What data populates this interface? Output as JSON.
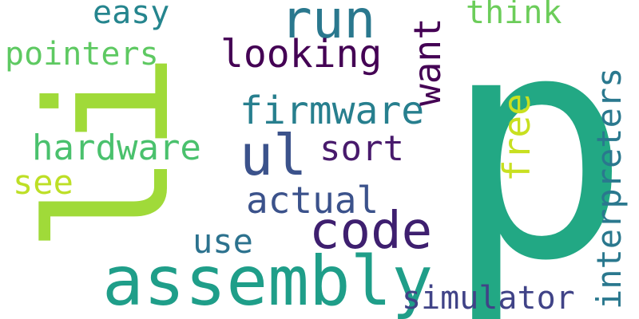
{
  "words": {
    "p": "p",
    "li": "li",
    "assembly": "assembly",
    "code": "code",
    "ul": "ul",
    "run": "run",
    "looking": "looking",
    "firmware": "firmware",
    "sort": "sort",
    "actual": "actual",
    "use": "use",
    "simulator": "simulator",
    "hardware": "hardware",
    "see": "see",
    "pointers": "pointers",
    "easy": "easy",
    "think": "think",
    "want": "want",
    "free": "free",
    "interpreters": "interpreters"
  },
  "colors": {
    "background": "#ffffff",
    "p": "#22a884",
    "li": "#a0da39",
    "assembly": "#1f9e89",
    "code": "#3e1f6f",
    "ul": "#3b528b",
    "run": "#2a788e",
    "looking": "#440154",
    "firmware": "#277f8e",
    "sort": "#481a6c",
    "actual": "#3b528b",
    "use": "#2c728e",
    "simulator": "#404387",
    "hardware": "#4ac16d",
    "see": "#bddf26",
    "pointers": "#5ec962",
    "easy": "#25858e",
    "think": "#6ccd5a",
    "want": "#440154",
    "free": "#c8e020",
    "interpreters": "#2a788e"
  }
}
